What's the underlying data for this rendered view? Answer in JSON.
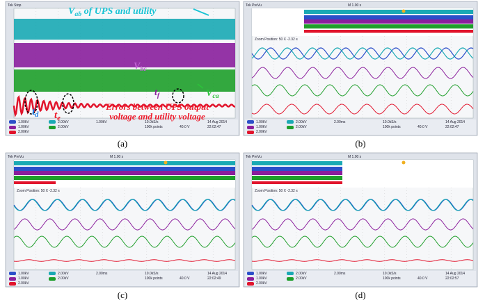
{
  "panels": [
    {
      "caption": "(a)",
      "header": "Tek Stop",
      "status": [
        "1.00kV",
        "1.00kV",
        "2.00kV",
        "2.00kV",
        "2.00kV",
        "1.00kV",
        "10.0kS/s",
        "100k points",
        "40.0 V",
        "14 Aug 2014",
        "22:02:47"
      ]
    },
    {
      "caption": "(b)",
      "header": "Tek PreVu",
      "timebase": "M 1.00 s",
      "zoom": "Zoom Position: 50 X    -2.32 s",
      "status": [
        "1.00kV",
        "1.00kV",
        "2.00kV",
        "2.00kV",
        "2.00kV",
        "2.00ms",
        "10.0kS/s",
        "100k points",
        "40.0 V",
        "14 Aug 2014",
        "22:02:47"
      ]
    },
    {
      "caption": "(c)",
      "header": "Tek PreVu",
      "timebase": "M 1.00 s",
      "zoom": "Zoom Position: 50 X    -2.32 s",
      "status": [
        "1.00kV",
        "1.00kV",
        "2.00kV",
        "2.00kV",
        "2.00kV",
        "2.00ms",
        "10.0kS/s",
        "100k points",
        "40.0 V",
        "14 Aug 2014",
        "22:02:49"
      ]
    },
    {
      "caption": "(d)",
      "header": "Tek PreVu",
      "timebase": "M 1.00 s",
      "zoom": "Zoom Position: 50 X    -2.32 s",
      "status": [
        "1.00kV",
        "1.00kV",
        "2.00kV",
        "2.00kV",
        "2.00kV",
        "2.00ms",
        "10.0kS/s",
        "100k points",
        "40.0 V",
        "14 Aug 2014",
        "22:02:57"
      ]
    }
  ],
  "annotations": {
    "vab": {
      "symbol": "V",
      "sub": "ab",
      "rest": " of UPS and utility"
    },
    "vbc": {
      "symbol": "V",
      "sub": "bc"
    },
    "vca": {
      "symbol": "V",
      "sub": "ca"
    },
    "td": {
      "symbol": "t",
      "sub": "d"
    },
    "te": {
      "symbol": "t",
      "sub": "e"
    },
    "tf": {
      "symbol": "t",
      "sub": "f"
    },
    "errors": [
      "Errors between UPS output",
      "voltage and utility voltage"
    ]
  }
}
